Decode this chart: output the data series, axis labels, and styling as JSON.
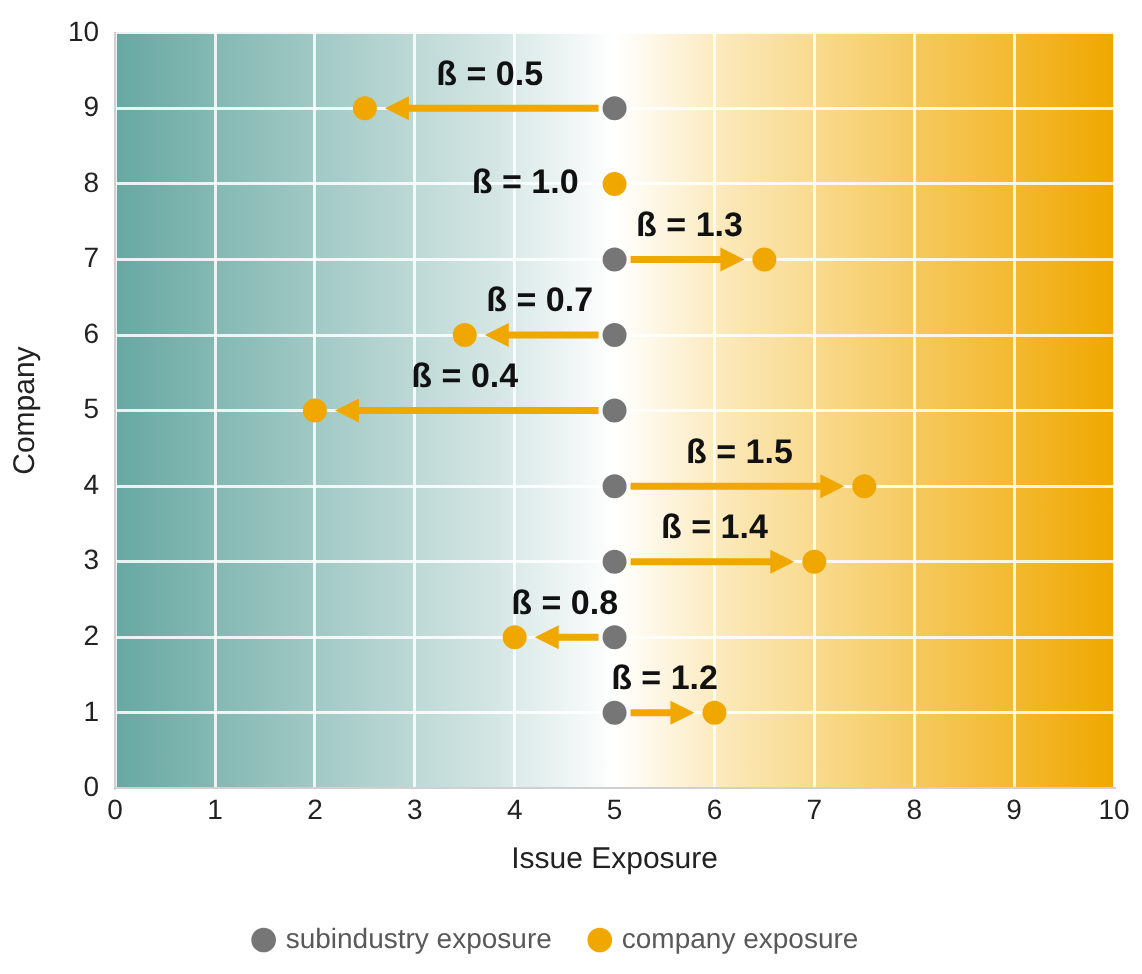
{
  "chart_data": {
    "type": "scatter",
    "xlabel": "Issue Exposure",
    "ylabel": "Company",
    "xlim": [
      0,
      10
    ],
    "xticks": [
      0,
      1,
      2,
      3,
      4,
      5,
      6,
      7,
      8,
      9,
      10
    ],
    "ylim": [
      0,
      10
    ],
    "yticks": [
      0,
      1,
      2,
      3,
      4,
      5,
      6,
      7,
      8,
      9,
      10
    ],
    "grid": true,
    "legend": "bottom",
    "marker": "circle",
    "series": [
      {
        "name": "subindustry exposure",
        "color": "#767676",
        "x": [
          5,
          5,
          5,
          5,
          5,
          5,
          5,
          5
        ],
        "values": [
          9,
          7,
          6,
          5,
          4,
          3,
          2,
          1
        ]
      },
      {
        "name": "company exposure",
        "color": "#f0a800",
        "x": [
          2.5,
          5,
          6.5,
          3.5,
          2,
          7.5,
          7,
          4,
          6
        ],
        "values": [
          9,
          8,
          7,
          6,
          5,
          4,
          3,
          2,
          1
        ]
      }
    ],
    "annotations": [
      {
        "text": "ß = 0.5",
        "x": 2.5,
        "y": 9
      },
      {
        "text": "ß = 1.0",
        "x": 5,
        "y": 8
      },
      {
        "text": "ß = 1.3",
        "x": 6.5,
        "y": 7
      },
      {
        "text": "ß = 0.7",
        "x": 3.5,
        "y": 6
      },
      {
        "text": "ß = 0.4",
        "x": 2,
        "y": 5
      },
      {
        "text": "ß = 1.5",
        "x": 7.5,
        "y": 4
      },
      {
        "text": "ß = 1.4",
        "x": 7,
        "y": 3
      },
      {
        "text": "ß = 0.8",
        "x": 4,
        "y": 2
      },
      {
        "text": "ß = 1.2",
        "x": 6,
        "y": 1
      }
    ]
  }
}
